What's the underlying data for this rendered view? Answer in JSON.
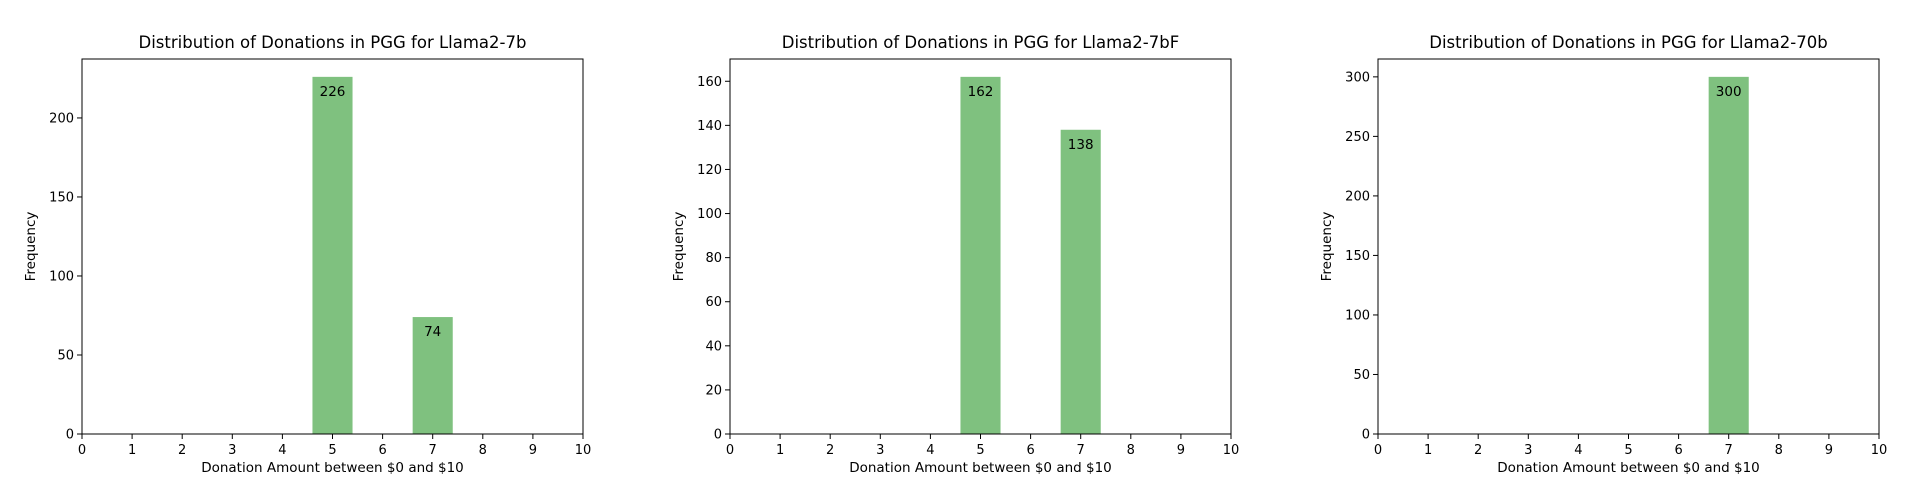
{
  "chart_data": [
    {
      "type": "bar",
      "title": "Distribution of Donations in PGG for Llama2-7b",
      "xlabel": "Donation Amount between $0 and $10",
      "ylabel": "Frequency",
      "xlim": [
        0,
        10
      ],
      "ylim": [
        0,
        237.3
      ],
      "xticks": [
        0,
        1,
        2,
        3,
        4,
        5,
        6,
        7,
        8,
        9,
        10
      ],
      "yticks": [
        0,
        50,
        100,
        150,
        200
      ],
      "bars": [
        {
          "x": 5,
          "width": 0.8,
          "value": 226,
          "label": "226"
        },
        {
          "x": 7,
          "width": 0.8,
          "value": 74,
          "label": "74"
        }
      ],
      "color": "#7fc17f"
    },
    {
      "type": "bar",
      "title": "Distribution of Donations in PGG for Llama2-7bF",
      "xlabel": "Donation Amount between $0 and $10",
      "ylabel": "Frequency",
      "xlim": [
        0,
        10
      ],
      "ylim": [
        0,
        170.1
      ],
      "xticks": [
        0,
        1,
        2,
        3,
        4,
        5,
        6,
        7,
        8,
        9,
        10
      ],
      "yticks": [
        0,
        20,
        40,
        60,
        80,
        100,
        120,
        140,
        160
      ],
      "bars": [
        {
          "x": 5,
          "width": 0.8,
          "value": 162,
          "label": "162"
        },
        {
          "x": 7,
          "width": 0.8,
          "value": 138,
          "label": "138"
        }
      ],
      "color": "#7fc17f"
    },
    {
      "type": "bar",
      "title": "Distribution of Donations in PGG for Llama2-70b",
      "xlabel": "Donation Amount between $0 and $10",
      "ylabel": "Frequency",
      "xlim": [
        0,
        10
      ],
      "ylim": [
        0,
        315
      ],
      "xticks": [
        0,
        1,
        2,
        3,
        4,
        5,
        6,
        7,
        8,
        9,
        10
      ],
      "yticks": [
        0,
        50,
        100,
        150,
        200,
        250,
        300
      ],
      "bars": [
        {
          "x": 7,
          "width": 0.8,
          "value": 300,
          "label": "300"
        }
      ],
      "color": "#7fc17f"
    }
  ]
}
